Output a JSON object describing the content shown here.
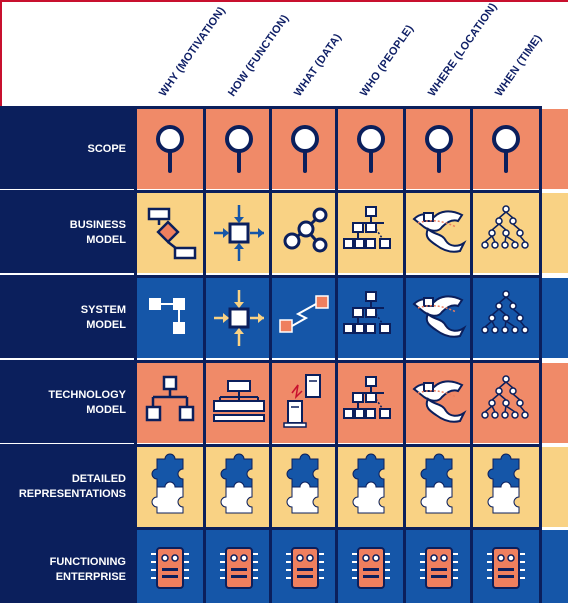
{
  "columns": [
    {
      "label": "WHY (MOTIVATION)"
    },
    {
      "label": "HOW (FUNCTION)"
    },
    {
      "label": "WHAT (DATA)"
    },
    {
      "label": "WHO (PEOPLE)"
    },
    {
      "label": "WHERE (LOCATION)"
    },
    {
      "label": "WHEN (TIME)"
    }
  ],
  "rows": [
    {
      "label": "SCOPE",
      "bg": "#f08a68",
      "icons": [
        "magnifier-icon",
        "magnifier-icon",
        "magnifier-icon",
        "magnifier-icon",
        "magnifier-icon",
        "magnifier-icon"
      ]
    },
    {
      "label": "BUSINESS\nMODEL",
      "bg": "#f9d284",
      "icons": [
        "flowchart-icon",
        "process-arrows-icon",
        "node-link-icon",
        "org-chart-icon",
        "world-map-icon",
        "hierarchy-tree-icon"
      ]
    },
    {
      "label": "SYSTEM\nMODEL",
      "bg": "#1556a8",
      "icons": [
        "connected-boxes-icon",
        "process-arrows-icon",
        "zigzag-link-icon",
        "org-chart-icon",
        "world-map-icon",
        "hierarchy-tree-icon"
      ]
    },
    {
      "label": "TECHNOLOGY\nMODEL",
      "bg": "#f08a68",
      "icons": [
        "bracket-boxes-icon",
        "stacked-tree-icon",
        "servers-icon",
        "org-chart-icon",
        "world-map-icon",
        "hierarchy-tree-icon"
      ]
    },
    {
      "label": "DETAILED\nREPRESENTATIONS",
      "bg": "#f9d284",
      "icons": [
        "puzzle-piece-icon",
        "puzzle-piece-icon",
        "puzzle-piece-icon",
        "puzzle-piece-icon",
        "puzzle-piece-icon",
        "puzzle-piece-icon"
      ]
    },
    {
      "label": "FUNCTIONING\nENTERPRISE",
      "bg": "#1556a8",
      "icons": [
        "robot-chip-icon",
        "robot-chip-icon",
        "robot-chip-icon",
        "robot-chip-icon",
        "robot-chip-icon",
        "robot-chip-icon"
      ]
    }
  ],
  "colors": {
    "navy": "#0b1f5c",
    "salmon": "#f08a68",
    "yellow": "#f9d284",
    "blue": "#1556a8",
    "accent_red": "#c8102e"
  }
}
